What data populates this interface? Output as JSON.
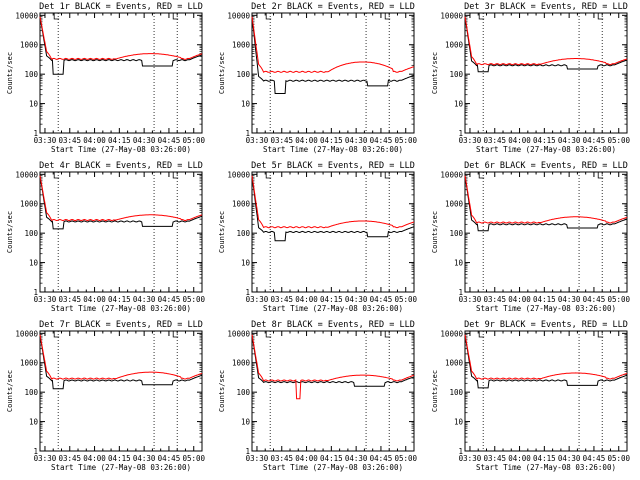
{
  "chart_data": [
    {
      "type": "line",
      "title": "Det 1r BLACK = Events, RED = LLD",
      "ylabel": "Counts/sec",
      "xlabel": "Start Time (27-May-08 03:26:00)",
      "xtick_labels": [
        "03:30",
        "03:45",
        "04:00",
        "04:15",
        "04:30",
        "04:45",
        "05:00"
      ],
      "ytick_labels": [
        "1",
        "10",
        "100",
        "1000",
        "10000"
      ],
      "xlim": [
        "03:27",
        "05:05"
      ],
      "ylim": [
        1,
        12000
      ],
      "vlines": [
        "03:38",
        "04:36",
        "04:50"
      ],
      "series": [
        {
          "name": "Events",
          "color": "#000000",
          "kind": "events",
          "base": 300,
          "drops": [
            [
              8,
              14,
              100
            ]
          ],
          "lows": [
            [
              62,
              80,
              190
            ]
          ],
          "dip": null
        },
        {
          "name": "LLD",
          "color": "#ff0000",
          "kind": "lld",
          "base": 330,
          "hump": [
            55,
            85,
            500
          ],
          "dip": null
        }
      ]
    },
    {
      "type": "line",
      "title": "Det 2r BLACK = Events, RED = LLD",
      "ylabel": "Counts/sec",
      "xlabel": "Start Time (27-May-08 03:26:00)",
      "xtick_labels": [
        "03:30",
        "03:45",
        "04:00",
        "04:15",
        "04:30",
        "04:45",
        "05:00"
      ],
      "ytick_labels": [
        "1",
        "10",
        "100",
        "1000",
        "10000"
      ],
      "xlim": [
        "03:27",
        "05:05"
      ],
      "ylim": [
        1,
        12000
      ],
      "vlines": [
        "03:38",
        "04:36",
        "04:50"
      ],
      "series": [
        {
          "name": "Events",
          "color": "#000000",
          "kind": "events",
          "base": 60,
          "drops": [
            [
              14,
              20,
              22
            ]
          ],
          "lows": [
            [
              70,
              82,
              40
            ]
          ],
          "dip": null
        },
        {
          "name": "LLD",
          "color": "#ff0000",
          "kind": "lld",
          "base": 120,
          "hump": [
            55,
            85,
            260
          ],
          "dip": null
        }
      ]
    },
    {
      "type": "line",
      "title": "Det 3r BLACK = Events, RED = LLD",
      "ylabel": "Counts/sec",
      "xlabel": "Start Time (27-May-08 03:26:00)",
      "xtick_labels": [
        "03:30",
        "03:45",
        "04:00",
        "04:15",
        "04:30",
        "04:45",
        "05:00"
      ],
      "ytick_labels": [
        "1",
        "10",
        "100",
        "1000",
        "10000"
      ],
      "xlim": [
        "03:27",
        "05:05"
      ],
      "ylim": [
        1,
        12000
      ],
      "vlines": [
        "03:38",
        "04:36",
        "04:50"
      ],
      "series": [
        {
          "name": "Events",
          "color": "#000000",
          "kind": "events",
          "base": 200,
          "drops": [
            [
              8,
              14,
              120
            ]
          ],
          "lows": [
            [
              62,
              80,
              150
            ]
          ],
          "dip": null
        },
        {
          "name": "LLD",
          "color": "#ff0000",
          "kind": "lld",
          "base": 220,
          "hump": [
            55,
            85,
            340
          ],
          "dip": null
        }
      ]
    },
    {
      "type": "line",
      "title": "Det 4r BLACK = Events, RED = LLD",
      "ylabel": "Counts/sec",
      "xlabel": "Start Time (27-May-08 03:26:00)",
      "xtick_labels": [
        "03:30",
        "03:45",
        "04:00",
        "04:15",
        "04:30",
        "04:45",
        "05:00"
      ],
      "ytick_labels": [
        "1",
        "10",
        "100",
        "1000",
        "10000"
      ],
      "xlim": [
        "03:27",
        "05:05"
      ],
      "ylim": [
        1,
        12000
      ],
      "vlines": [
        "03:38",
        "04:36",
        "04:50"
      ],
      "series": [
        {
          "name": "Events",
          "color": "#000000",
          "kind": "events",
          "base": 250,
          "drops": [
            [
              8,
              14,
              140
            ]
          ],
          "lows": [
            [
              62,
              80,
              170
            ]
          ],
          "dip": null
        },
        {
          "name": "LLD",
          "color": "#ff0000",
          "kind": "lld",
          "base": 280,
          "hump": [
            55,
            85,
            420
          ],
          "dip": null
        }
      ]
    },
    {
      "type": "line",
      "title": "Det 5r BLACK = Events, RED = LLD",
      "ylabel": "Counts/sec",
      "xlabel": "Start Time (27-May-08 03:26:00)",
      "xtick_labels": [
        "03:30",
        "03:45",
        "04:00",
        "04:15",
        "04:30",
        "04:45",
        "05:00"
      ],
      "ytick_labels": [
        "1",
        "10",
        "100",
        "1000",
        "10000"
      ],
      "xlim": [
        "03:27",
        "05:05"
      ],
      "ylim": [
        1,
        12000
      ],
      "vlines": [
        "03:38",
        "04:36",
        "04:50"
      ],
      "series": [
        {
          "name": "Events",
          "color": "#000000",
          "kind": "events",
          "base": 110,
          "drops": [
            [
              14,
              20,
              55
            ]
          ],
          "lows": [
            [
              70,
              82,
              75
            ]
          ],
          "dip": null
        },
        {
          "name": "LLD",
          "color": "#ff0000",
          "kind": "lld",
          "base": 160,
          "hump": [
            55,
            85,
            260
          ],
          "dip": null
        }
      ]
    },
    {
      "type": "line",
      "title": "Det 6r BLACK = Events, RED = LLD",
      "ylabel": "Counts/sec",
      "xlabel": "Start Time (27-May-08 03:26:00)",
      "xtick_labels": [
        "03:30",
        "03:45",
        "04:00",
        "04:15",
        "04:30",
        "04:45",
        "05:00"
      ],
      "ytick_labels": [
        "1",
        "10",
        "100",
        "1000",
        "10000"
      ],
      "xlim": [
        "03:27",
        "05:05"
      ],
      "ylim": [
        1,
        12000
      ],
      "vlines": [
        "03:38",
        "04:36",
        "04:50"
      ],
      "series": [
        {
          "name": "Events",
          "color": "#000000",
          "kind": "events",
          "base": 200,
          "drops": [
            [
              8,
              14,
              120
            ]
          ],
          "lows": [
            [
              62,
              80,
              150
            ]
          ],
          "dip": null
        },
        {
          "name": "LLD",
          "color": "#ff0000",
          "kind": "lld",
          "base": 230,
          "hump": [
            55,
            85,
            360
          ],
          "dip": null
        }
      ]
    },
    {
      "type": "line",
      "title": "Det 7r BLACK = Events, RED = LLD",
      "ylabel": "Counts/sec",
      "xlabel": "Start Time (27-May-08 03:26:00)",
      "xtick_labels": [
        "03:30",
        "03:45",
        "04:00",
        "04:15",
        "04:30",
        "04:45",
        "05:00"
      ],
      "ytick_labels": [
        "1",
        "10",
        "100",
        "1000",
        "10000"
      ],
      "xlim": [
        "03:27",
        "05:05"
      ],
      "ylim": [
        1,
        12000
      ],
      "vlines": [
        "03:38",
        "04:36",
        "04:50"
      ],
      "series": [
        {
          "name": "Events",
          "color": "#000000",
          "kind": "events",
          "base": 250,
          "drops": [
            [
              8,
              14,
              130
            ]
          ],
          "lows": [
            [
              62,
              80,
              180
            ]
          ],
          "dip": null
        },
        {
          "name": "LLD",
          "color": "#ff0000",
          "kind": "lld",
          "base": 290,
          "hump": [
            55,
            85,
            480
          ],
          "dip": null
        }
      ]
    },
    {
      "type": "line",
      "title": "Det 8r BLACK = Events, RED = LLD",
      "ylabel": "Counts/sec",
      "xlabel": "Start Time (27-May-08 03:26:00)",
      "xtick_labels": [
        "03:30",
        "03:45",
        "04:00",
        "04:15",
        "04:30",
        "04:45",
        "05:00"
      ],
      "ytick_labels": [
        "1",
        "10",
        "100",
        "1000",
        "10000"
      ],
      "xlim": [
        "03:27",
        "05:05"
      ],
      "ylim": [
        1,
        12000
      ],
      "vlines": [
        "03:38",
        "04:36",
        "04:50"
      ],
      "series": [
        {
          "name": "Events",
          "color": "#000000",
          "kind": "events",
          "base": 220,
          "drops": [],
          "lows": [
            [
              62,
              80,
              160
            ]
          ],
          "dip": null
        },
        {
          "name": "LLD",
          "color": "#ff0000",
          "kind": "lld",
          "base": 250,
          "hump": [
            55,
            85,
            380
          ],
          "dip": [
            27,
            29,
            60
          ]
        }
      ]
    },
    {
      "type": "line",
      "title": "Det 9r BLACK = Events, RED = LLD",
      "ylabel": "Counts/sec",
      "xlabel": "Start Time (27-May-08 03:26:00)",
      "xtick_labels": [
        "03:30",
        "03:45",
        "04:00",
        "04:15",
        "04:30",
        "04:45",
        "05:00"
      ],
      "ytick_labels": [
        "1",
        "10",
        "100",
        "1000",
        "10000"
      ],
      "xlim": [
        "03:27",
        "05:05"
      ],
      "ylim": [
        1,
        12000
      ],
      "vlines": [
        "03:38",
        "04:36",
        "04:50"
      ],
      "series": [
        {
          "name": "Events",
          "color": "#000000",
          "kind": "events",
          "base": 250,
          "drops": [
            [
              8,
              14,
              140
            ]
          ],
          "lows": [
            [
              62,
              80,
              170
            ]
          ],
          "dip": null
        },
        {
          "name": "LLD",
          "color": "#ff0000",
          "kind": "lld",
          "base": 290,
          "hump": [
            55,
            85,
            450
          ],
          "dip": null
        }
      ]
    }
  ]
}
